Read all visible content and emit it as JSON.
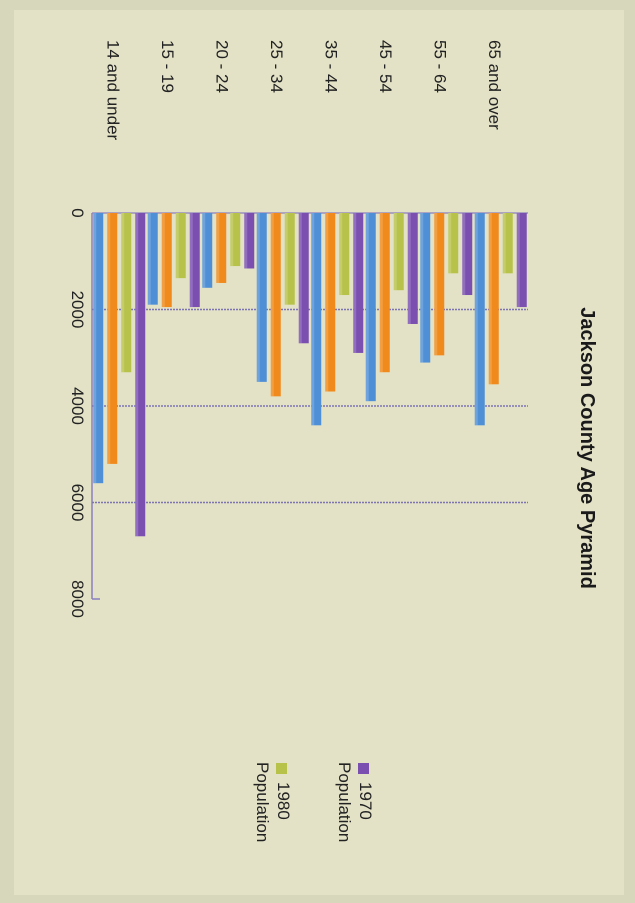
{
  "chart_data": {
    "type": "bar",
    "orientation": "rotated-90-clockwise",
    "title": "Jackson County Age Pyramid",
    "categories": [
      "14 and under",
      "15 - 19",
      "20 - 24",
      "25 - 34",
      "35 - 44",
      "45 - 54",
      "55 - 64",
      "65 and over"
    ],
    "series": [
      {
        "name": "",
        "color": "#4f8fd6",
        "values": [
          5600,
          1900,
          1550,
          3500,
          4400,
          3900,
          3100,
          4400
        ]
      },
      {
        "name": "",
        "color": "#f08a1c",
        "values": [
          5200,
          1950,
          1450,
          3800,
          3700,
          3300,
          2950,
          3550
        ]
      },
      {
        "name": "1980 Population",
        "color": "#b7c24a",
        "values": [
          3300,
          1350,
          1100,
          1900,
          1700,
          1600,
          1250,
          1250
        ]
      },
      {
        "name": "1970 Population",
        "color": "#7a4fb0",
        "values": [
          6700,
          1950,
          1150,
          2700,
          2900,
          2300,
          1700,
          1950
        ]
      }
    ],
    "value_axis": {
      "ticks": [
        "0",
        "2000",
        "4000",
        "6000",
        "8000"
      ],
      "min": 0,
      "max": 8000
    },
    "gridlines": [
      2000,
      4000,
      6000
    ],
    "legend": [
      "1970 Population",
      "1980 Population"
    ],
    "legend_position": "right"
  }
}
